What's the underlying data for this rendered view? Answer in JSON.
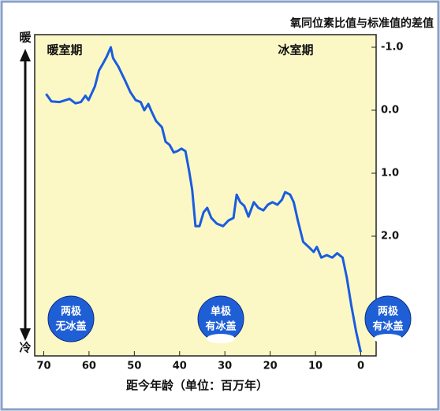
{
  "chart_data": {
    "type": "line",
    "y_axis_label": "氧同位素比值与标准值的差值",
    "x_axis_label": "距今年龄（单位：百万年）",
    "warm_label": "暖",
    "cold_label": "冷",
    "period_labels": [
      "暖室期",
      "冰室期"
    ],
    "circle_labels": [
      [
        "两极",
        "无冰盖"
      ],
      [
        "单极",
        "有冰盖"
      ],
      [
        "两极",
        "有冰盖"
      ]
    ],
    "xlim": [
      72,
      -3.4
    ],
    "xticks": [
      70,
      60,
      50,
      40,
      30,
      20,
      10,
      0
    ],
    "ylim": [
      -1.2,
      3.9
    ],
    "yticks": [
      {
        "value": -1,
        "label": "-1.0"
      },
      {
        "value": 0,
        "label": "0.0"
      },
      {
        "value": 1,
        "label": "1.0"
      },
      {
        "value": 2,
        "label": "2.0"
      }
    ],
    "series": [
      {
        "color": "#1a5ce0",
        "x": [
          69.5,
          68.3,
          66.5,
          64.3,
          63,
          61.8,
          60.8,
          60.1,
          58.7,
          57.8,
          57,
          56.1,
          55.2,
          54.7,
          53.5,
          52.1,
          50.9,
          49.7,
          48.6,
          47.8,
          46.9,
          46.2,
          45.2,
          43.9,
          43.1,
          42.2,
          41.3,
          40.5,
          39.6,
          38.7,
          37.9,
          37.2,
          36.5,
          35.6,
          34.7,
          33.9,
          33,
          31.8,
          30.4,
          29.2,
          28.1,
          27.4,
          26.6,
          25.7,
          24.8,
          23.6,
          22.6,
          21.5,
          20.5,
          19.5,
          18.4,
          17.4,
          16.7,
          15.6,
          14.8,
          13.9,
          12.7,
          11.5,
          10.4,
          9.7,
          8.7,
          7.5,
          6.3,
          5.2,
          4,
          3.1,
          2.1,
          1,
          0
        ],
        "values": [
          -0.26,
          -0.14,
          -0.13,
          -0.18,
          -0.11,
          -0.13,
          -0.23,
          -0.16,
          -0.38,
          -0.63,
          -0.73,
          -0.85,
          -1.0,
          -0.83,
          -0.69,
          -0.48,
          -0.29,
          -0.16,
          -0.13,
          0,
          -0.1,
          0.02,
          0.17,
          0.27,
          0.5,
          0.55,
          0.67,
          0.65,
          0.61,
          0.65,
          0.96,
          1.27,
          1.84,
          1.84,
          1.62,
          1.55,
          1.71,
          1.8,
          1.84,
          1.75,
          1.71,
          1.34,
          1.46,
          1.52,
          1.69,
          1.46,
          1.55,
          1.59,
          1.5,
          1.46,
          1.5,
          1.42,
          1.3,
          1.34,
          1.46,
          1.75,
          2.09,
          2.17,
          2.25,
          2.17,
          2.34,
          2.3,
          2.34,
          2.27,
          2.34,
          2.65,
          3.09,
          3.52,
          3.84
        ]
      }
    ]
  }
}
